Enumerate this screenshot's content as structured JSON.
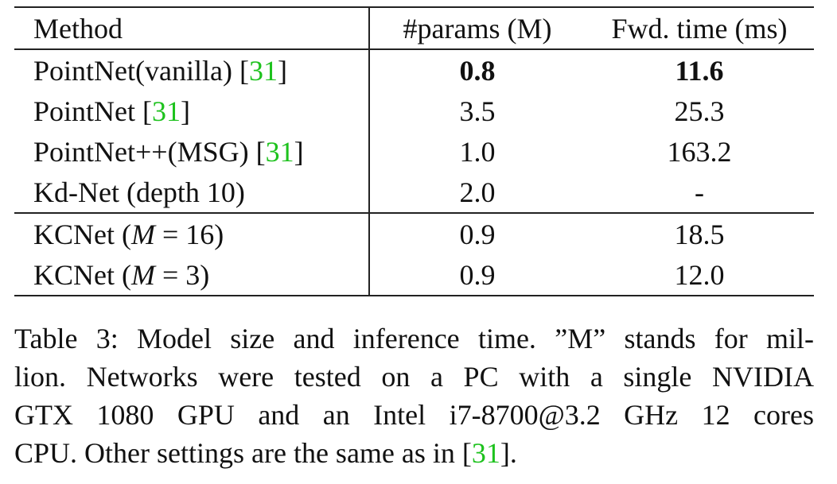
{
  "table": {
    "headers": [
      "Method",
      "#params (M)",
      "Fwd. time (ms)"
    ],
    "rows": [
      {
        "method": "PointNet(vanilla) ",
        "cite": "31",
        "cite_open": "[",
        "cite_close": "]",
        "params": "0.8",
        "time": "11.6",
        "bold": true
      },
      {
        "method": "PointNet ",
        "cite": "31",
        "cite_open": "[",
        "cite_close": "]",
        "params": "3.5",
        "time": "25.3"
      },
      {
        "method": "PointNet++(MSG) ",
        "cite": "31",
        "cite_open": "[",
        "cite_close": "]",
        "params": "1.0",
        "time": "163.2"
      },
      {
        "method": "Kd-Net (depth 10)",
        "params": "2.0",
        "time": "-"
      },
      {
        "method_pre": "KCNet (",
        "math_var": "M",
        "math_rest": " = 16)",
        "params": "0.9",
        "time": "18.5"
      },
      {
        "method_pre": "KCNet (",
        "math_var": "M",
        "math_rest": " = 3)",
        "params": "0.9",
        "time": "12.0"
      }
    ]
  },
  "caption": {
    "line1": "Table 3: Model size and inference time. ”M” stands for mil-",
    "line2": "lion. Networks were tested on a PC with a single NVIDIA",
    "line3": "GTX 1080 GPU and an Intel i7-8700@3.2 GHz 12 cores",
    "line4_pre": "CPU. Other settings are the same as in [",
    "line4_cite": "31",
    "line4_post": "]."
  },
  "colors": {
    "citation": "#1ec21e",
    "rule": "#222222",
    "text": "#111111"
  }
}
